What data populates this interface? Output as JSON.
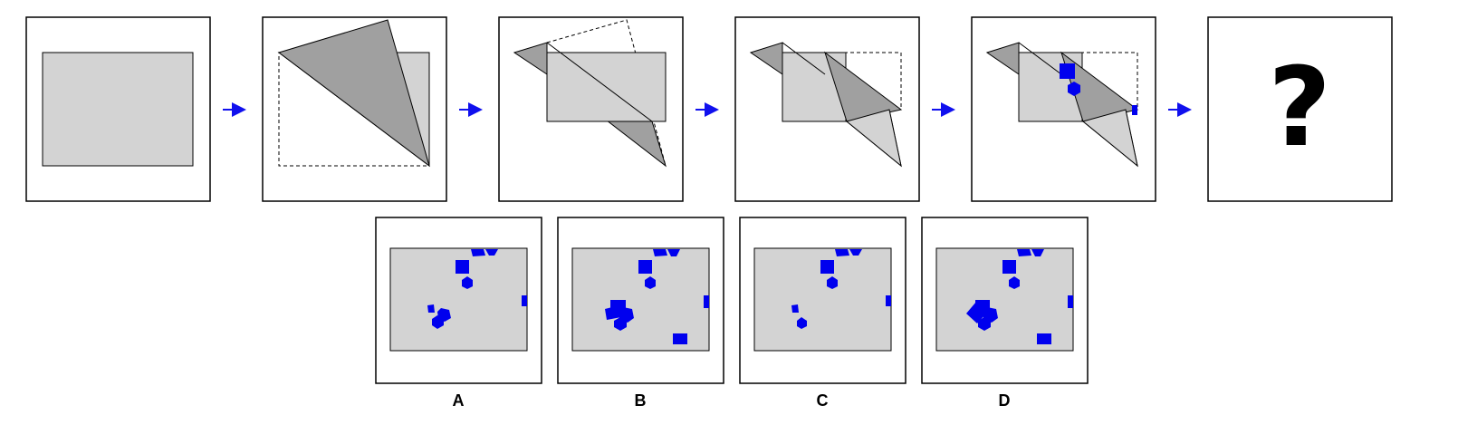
{
  "puzzle": {
    "question_mark": "?",
    "colors": {
      "paper": "#d3d3d3",
      "fold_dark": "#a0a0a0",
      "hole": "#0000ee",
      "arrow": "#1010ee",
      "outline": "#000000"
    },
    "sequence_step_count": 6
  },
  "options": [
    {
      "label": "A"
    },
    {
      "label": "B"
    },
    {
      "label": "C"
    },
    {
      "label": "D"
    }
  ]
}
